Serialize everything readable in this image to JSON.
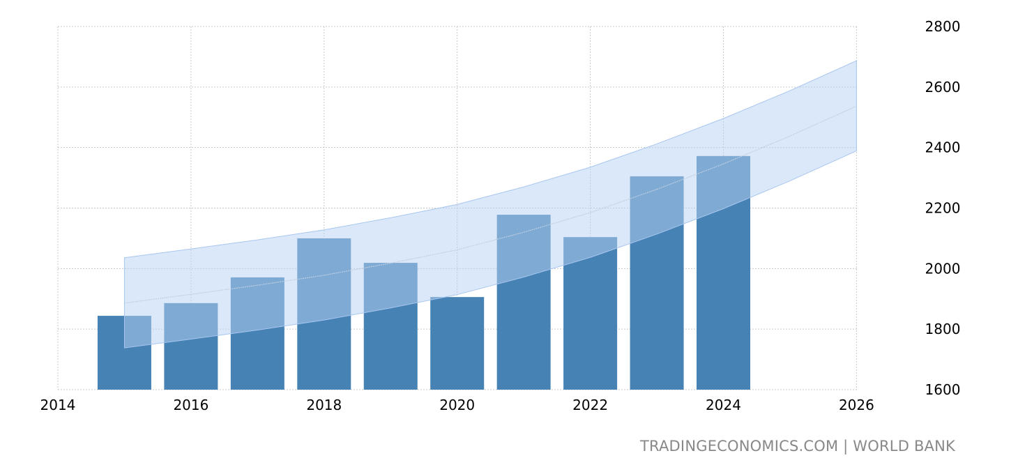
{
  "chart_data": {
    "type": "bar",
    "title": "",
    "xlabel": "",
    "ylabel": "",
    "x": [
      2015,
      2016,
      2017,
      2018,
      2019,
      2020,
      2021,
      2022,
      2023,
      2024
    ],
    "values": [
      1844,
      1886,
      1971,
      2100,
      2019,
      1906,
      2178,
      2104,
      2305,
      2372
    ],
    "forecast_band": {
      "x": [
        2015,
        2016,
        2017,
        2018,
        2019,
        2020,
        2021,
        2022,
        2023,
        2024,
        2025,
        2026
      ],
      "mid": [
        1886,
        1915,
        1945,
        1978,
        2018,
        2062,
        2120,
        2185,
        2262,
        2346,
        2438,
        2537
      ],
      "upper": [
        2036,
        2065,
        2095,
        2128,
        2168,
        2212,
        2270,
        2335,
        2412,
        2496,
        2588,
        2687
      ],
      "lower": [
        1738,
        1767,
        1797,
        1830,
        1870,
        1914,
        1972,
        2037,
        2114,
        2198,
        2290,
        2389
      ]
    },
    "xlim": [
      2014,
      2027.5
    ],
    "ylim": [
      1600,
      2800
    ],
    "xticks": [
      "2014",
      "2016",
      "2018",
      "2020",
      "2022",
      "2024",
      "2026"
    ],
    "yticks": [
      "1600",
      "1800",
      "2000",
      "2200",
      "2400",
      "2600",
      "2800"
    ],
    "y_axis_side": "right",
    "grid": true,
    "colors": {
      "bar": "#4682b4",
      "band": "#d6e5f8",
      "grid": "#c8c8c8"
    }
  },
  "source": "TRADINGECONOMICS.COM | WORLD BANK"
}
